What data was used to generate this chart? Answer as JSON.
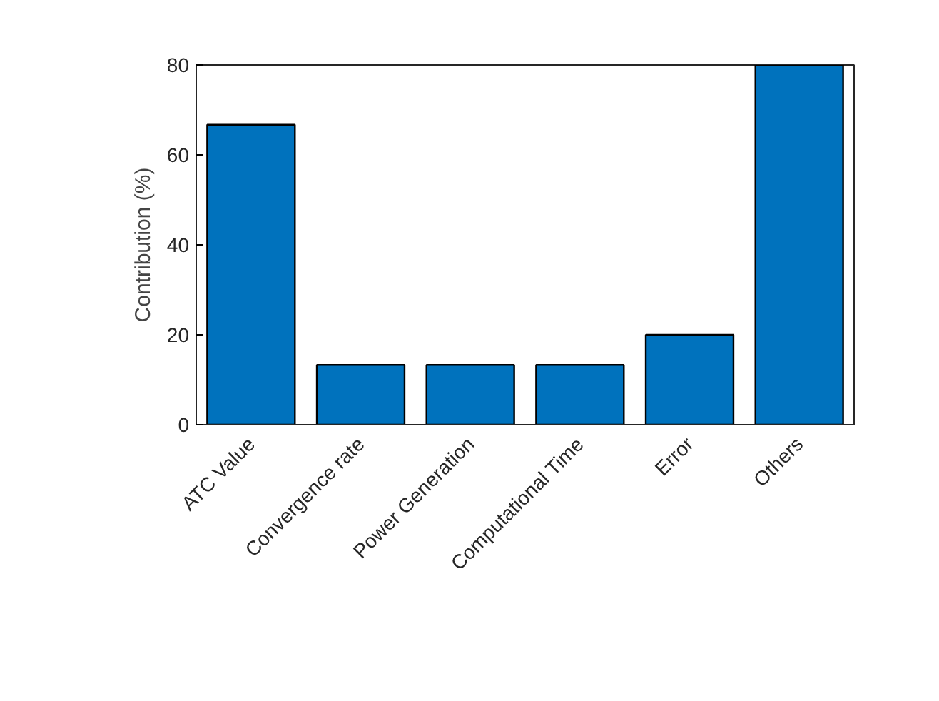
{
  "chart_data": {
    "type": "bar",
    "ylabel": "Contribution (%)",
    "categories": [
      "ATC Value",
      "Convergence rate",
      "Power Generation",
      "Computational Time",
      "Error",
      "Others"
    ],
    "values": [
      66.7,
      13.3,
      13.3,
      13.3,
      20,
      80
    ],
    "color": "#0072bd",
    "ylim": [
      0,
      80
    ],
    "yticks": [
      0,
      20,
      40,
      60,
      80
    ],
    "grid": false
  }
}
